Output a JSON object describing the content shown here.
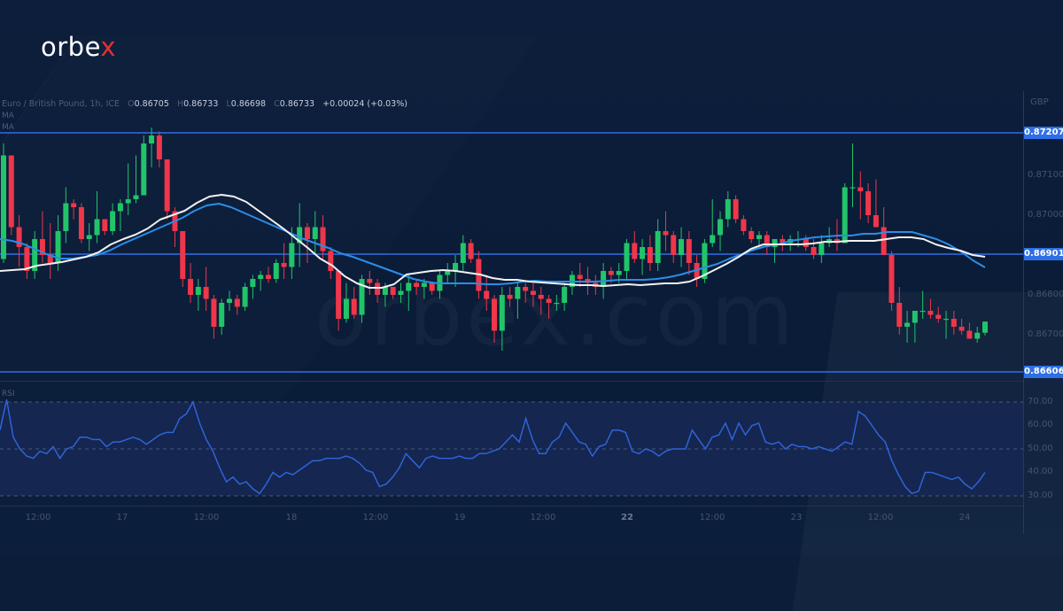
{
  "brand": {
    "logo_main": "orbe",
    "logo_accent": "x",
    "watermark": "orbex.com"
  },
  "legend": {
    "symbol": "Euro / British Pound, 1h, ICE",
    "open_label": "O",
    "open": "0.86705",
    "high_label": "H",
    "high": "0.86733",
    "low_label": "L",
    "low": "0.86698",
    "close_label": "C",
    "close": "0.86733",
    "change": "+0.00024 (+0.03%)",
    "ma1": "MA",
    "ma2": "MA"
  },
  "colors": {
    "up": "#22c46a",
    "down": "#f0364a",
    "ma_fast": "#f2f2f2",
    "ma_slow": "#2b8de8",
    "hline": "#2e6fe6",
    "rsi": "#2f63d8"
  },
  "price_axis": {
    "currency": "GBP",
    "ticks": [
      {
        "label": "0.87100",
        "y": 198
      },
      {
        "label": "0.87000",
        "y": 243
      },
      {
        "label": "0.86800",
        "y": 333
      },
      {
        "label": "0.86700",
        "y": 378
      }
    ],
    "levels": [
      {
        "label": "0.87207",
        "y": 150
      },
      {
        "label": "0.86901",
        "y": 287
      },
      {
        "label": "0.86606",
        "y": 420
      }
    ]
  },
  "rsi_axis": {
    "label": "RSI",
    "ticks": [
      {
        "label": "70.00",
        "y": 454
      },
      {
        "label": "60.00",
        "y": 480
      },
      {
        "label": "50.00",
        "y": 507
      },
      {
        "label": "40.00",
        "y": 533
      },
      {
        "label": "30.00",
        "y": 560
      }
    ]
  },
  "time_axis": [
    {
      "label": "12:00",
      "x": 43,
      "bold": false
    },
    {
      "label": "17",
      "x": 138,
      "bold": false
    },
    {
      "label": "12:00",
      "x": 233,
      "bold": false
    },
    {
      "label": "18",
      "x": 329,
      "bold": false
    },
    {
      "label": "12:00",
      "x": 424,
      "bold": false
    },
    {
      "label": "19",
      "x": 519,
      "bold": false
    },
    {
      "label": "12:00",
      "x": 613,
      "bold": false
    },
    {
      "label": "22",
      "x": 708,
      "bold": true
    },
    {
      "label": "12:00",
      "x": 804,
      "bold": false
    },
    {
      "label": "23",
      "x": 899,
      "bold": false
    },
    {
      "label": "12:00",
      "x": 994,
      "bold": false
    },
    {
      "label": "24",
      "x": 1089,
      "bold": false
    }
  ],
  "chart_data": {
    "type": "candlestick",
    "title": "Euro / British Pound, 1h, ICE",
    "ylabel": "GBP",
    "ylim": [
      0.8659,
      0.8725
    ],
    "horizontal_levels": [
      0.87207,
      0.86901,
      0.86606
    ],
    "x_ticks": [
      "12:00",
      "17",
      "12:00",
      "18",
      "12:00",
      "19",
      "12:00",
      "22",
      "12:00",
      "23",
      "12:00",
      "24"
    ],
    "ohlc_last": {
      "open": 0.86705,
      "high": 0.86733,
      "low": 0.86698,
      "close": 0.86733,
      "change": 0.00024,
      "change_pct": 0.03
    },
    "candles": [
      [
        0.8689,
        0.8718,
        0.8688,
        0.8715
      ],
      [
        0.8715,
        0.8715,
        0.8695,
        0.8697
      ],
      [
        0.8697,
        0.87,
        0.8687,
        0.8692
      ],
      [
        0.8692,
        0.8693,
        0.8684,
        0.8686
      ],
      [
        0.8686,
        0.8696,
        0.8684,
        0.8694
      ],
      [
        0.8694,
        0.8701,
        0.8688,
        0.869
      ],
      [
        0.869,
        0.8698,
        0.8684,
        0.8688
      ],
      [
        0.8688,
        0.87,
        0.8686,
        0.8696
      ],
      [
        0.8696,
        0.8707,
        0.8693,
        0.8703
      ],
      [
        0.8703,
        0.8704,
        0.8699,
        0.8702
      ],
      [
        0.8702,
        0.8703,
        0.8693,
        0.8694
      ],
      [
        0.8694,
        0.8698,
        0.8691,
        0.8695
      ],
      [
        0.8695,
        0.8706,
        0.8693,
        0.8699
      ],
      [
        0.8699,
        0.8699,
        0.8695,
        0.8696
      ],
      [
        0.8696,
        0.8703,
        0.8695,
        0.8701
      ],
      [
        0.8701,
        0.8704,
        0.8696,
        0.8703
      ],
      [
        0.8703,
        0.8713,
        0.87,
        0.8704
      ],
      [
        0.8704,
        0.8715,
        0.8703,
        0.8705
      ],
      [
        0.8705,
        0.872,
        0.8705,
        0.8718
      ],
      [
        0.8718,
        0.8722,
        0.8712,
        0.872
      ],
      [
        0.872,
        0.8721,
        0.8712,
        0.8714
      ],
      [
        0.8714,
        0.8714,
        0.8699,
        0.8701
      ],
      [
        0.8701,
        0.8702,
        0.8692,
        0.8696
      ],
      [
        0.8696,
        0.8696,
        0.8682,
        0.8684
      ],
      [
        0.8684,
        0.8688,
        0.8678,
        0.868
      ],
      [
        0.868,
        0.8684,
        0.8676,
        0.8682
      ],
      [
        0.8682,
        0.8687,
        0.8676,
        0.8679
      ],
      [
        0.8679,
        0.868,
        0.8669,
        0.8672
      ],
      [
        0.8672,
        0.8679,
        0.867,
        0.8678
      ],
      [
        0.8678,
        0.8681,
        0.8676,
        0.8679
      ],
      [
        0.8679,
        0.868,
        0.8675,
        0.8677
      ],
      [
        0.8677,
        0.8683,
        0.8676,
        0.8682
      ],
      [
        0.8682,
        0.8685,
        0.8679,
        0.8684
      ],
      [
        0.8684,
        0.8686,
        0.8681,
        0.8685
      ],
      [
        0.8685,
        0.8687,
        0.8683,
        0.8684
      ],
      [
        0.8684,
        0.8689,
        0.8683,
        0.8688
      ],
      [
        0.8688,
        0.8693,
        0.8684,
        0.8687
      ],
      [
        0.8687,
        0.8697,
        0.8684,
        0.8693
      ],
      [
        0.8693,
        0.8703,
        0.8687,
        0.8697
      ],
      [
        0.8697,
        0.8698,
        0.8688,
        0.8694
      ],
      [
        0.8694,
        0.8701,
        0.869,
        0.8697
      ],
      [
        0.8697,
        0.87,
        0.8689,
        0.8691
      ],
      [
        0.8691,
        0.8692,
        0.8684,
        0.8686
      ],
      [
        0.8686,
        0.8686,
        0.8671,
        0.8674
      ],
      [
        0.8674,
        0.8683,
        0.8673,
        0.8679
      ],
      [
        0.8679,
        0.8682,
        0.8674,
        0.8675
      ],
      [
        0.8675,
        0.8685,
        0.8673,
        0.8684
      ],
      [
        0.8684,
        0.8686,
        0.868,
        0.8683
      ],
      [
        0.8683,
        0.8684,
        0.8678,
        0.868
      ],
      [
        0.868,
        0.8683,
        0.8677,
        0.8682
      ],
      [
        0.8682,
        0.8682,
        0.8679,
        0.868
      ],
      [
        0.868,
        0.8683,
        0.8678,
        0.8681
      ],
      [
        0.8681,
        0.8685,
        0.8676,
        0.8683
      ],
      [
        0.8683,
        0.8684,
        0.868,
        0.8682
      ],
      [
        0.8682,
        0.8684,
        0.8679,
        0.8683
      ],
      [
        0.8683,
        0.8683,
        0.868,
        0.8681
      ],
      [
        0.8681,
        0.8686,
        0.8679,
        0.8685
      ],
      [
        0.8685,
        0.8688,
        0.8683,
        0.8686
      ],
      [
        0.8686,
        0.869,
        0.8682,
        0.8688
      ],
      [
        0.8688,
        0.8695,
        0.8686,
        0.8693
      ],
      [
        0.8693,
        0.8694,
        0.8688,
        0.8689
      ],
      [
        0.8689,
        0.8691,
        0.8679,
        0.8681
      ],
      [
        0.8681,
        0.8685,
        0.8676,
        0.8679
      ],
      [
        0.8679,
        0.868,
        0.8668,
        0.8671
      ],
      [
        0.8671,
        0.8682,
        0.8666,
        0.868
      ],
      [
        0.868,
        0.8682,
        0.8677,
        0.8679
      ],
      [
        0.8679,
        0.8683,
        0.8674,
        0.8682
      ],
      [
        0.8682,
        0.8683,
        0.8678,
        0.8681
      ],
      [
        0.8681,
        0.8683,
        0.8677,
        0.868
      ],
      [
        0.868,
        0.8682,
        0.8675,
        0.8679
      ],
      [
        0.8679,
        0.868,
        0.8674,
        0.8678
      ],
      [
        0.8678,
        0.868,
        0.8676,
        0.8678
      ],
      [
        0.8678,
        0.8683,
        0.8676,
        0.8682
      ],
      [
        0.8682,
        0.8686,
        0.868,
        0.8685
      ],
      [
        0.8685,
        0.8688,
        0.8682,
        0.8684
      ],
      [
        0.8684,
        0.8687,
        0.868,
        0.8683
      ],
      [
        0.8683,
        0.8685,
        0.868,
        0.8682
      ],
      [
        0.8682,
        0.8688,
        0.8679,
        0.8686
      ],
      [
        0.8686,
        0.8687,
        0.8683,
        0.8685
      ],
      [
        0.8685,
        0.8688,
        0.8683,
        0.8686
      ],
      [
        0.8686,
        0.8694,
        0.8684,
        0.8693
      ],
      [
        0.8693,
        0.8696,
        0.8688,
        0.8689
      ],
      [
        0.8689,
        0.8694,
        0.8685,
        0.8692
      ],
      [
        0.8692,
        0.8695,
        0.8686,
        0.8688
      ],
      [
        0.8688,
        0.8699,
        0.8686,
        0.8696
      ],
      [
        0.8696,
        0.8701,
        0.8691,
        0.8695
      ],
      [
        0.8695,
        0.8696,
        0.8688,
        0.869
      ],
      [
        0.869,
        0.8697,
        0.8687,
        0.8694
      ],
      [
        0.8694,
        0.8696,
        0.8685,
        0.8688
      ],
      [
        0.8688,
        0.869,
        0.8682,
        0.8684
      ],
      [
        0.8684,
        0.8694,
        0.8683,
        0.8693
      ],
      [
        0.8693,
        0.8704,
        0.8692,
        0.8695
      ],
      [
        0.8695,
        0.8701,
        0.8691,
        0.8699
      ],
      [
        0.8699,
        0.8706,
        0.8697,
        0.8704
      ],
      [
        0.8704,
        0.8705,
        0.8698,
        0.8699
      ],
      [
        0.8699,
        0.87,
        0.8695,
        0.8696
      ],
      [
        0.8696,
        0.8697,
        0.8693,
        0.8694
      ],
      [
        0.8694,
        0.8696,
        0.8692,
        0.8695
      ],
      [
        0.8695,
        0.8696,
        0.869,
        0.8692
      ],
      [
        0.8692,
        0.8694,
        0.8688,
        0.8694
      ],
      [
        0.8694,
        0.8695,
        0.8691,
        0.8693
      ],
      [
        0.8693,
        0.8695,
        0.8691,
        0.8694
      ],
      [
        0.8694,
        0.8696,
        0.8692,
        0.8694
      ],
      [
        0.8694,
        0.8695,
        0.8691,
        0.8692
      ],
      [
        0.8692,
        0.8694,
        0.8689,
        0.869
      ],
      [
        0.869,
        0.8695,
        0.8688,
        0.8693
      ],
      [
        0.8693,
        0.8697,
        0.8692,
        0.8694
      ],
      [
        0.8694,
        0.8699,
        0.8691,
        0.8693
      ],
      [
        0.8693,
        0.8708,
        0.8693,
        0.8707
      ],
      [
        0.8707,
        0.8718,
        0.8702,
        0.8707
      ],
      [
        0.8707,
        0.8711,
        0.8699,
        0.8706
      ],
      [
        0.8706,
        0.8708,
        0.8698,
        0.87
      ],
      [
        0.87,
        0.8709,
        0.8698,
        0.8697
      ],
      [
        0.8697,
        0.8702,
        0.8693,
        0.869
      ],
      [
        0.869,
        0.8691,
        0.8676,
        0.8678
      ],
      [
        0.8678,
        0.8682,
        0.867,
        0.8672
      ],
      [
        0.8672,
        0.8676,
        0.8668,
        0.8673
      ],
      [
        0.8673,
        0.8676,
        0.8668,
        0.8676
      ],
      [
        0.8676,
        0.8681,
        0.8674,
        0.8676
      ],
      [
        0.8676,
        0.8679,
        0.8674,
        0.8675
      ],
      [
        0.8675,
        0.8677,
        0.8673,
        0.8674
      ],
      [
        0.8674,
        0.8676,
        0.8669,
        0.8674
      ],
      [
        0.8674,
        0.8676,
        0.867,
        0.8672
      ],
      [
        0.8672,
        0.8674,
        0.867,
        0.8671
      ],
      [
        0.8671,
        0.8673,
        0.8669,
        0.8669
      ],
      [
        0.8669,
        0.8672,
        0.8668,
        0.86705
      ],
      [
        0.86705,
        0.86733,
        0.86698,
        0.86733
      ]
    ],
    "ma_fast_y": [
      306,
      305,
      304,
      300,
      298,
      296,
      293,
      290,
      285,
      276,
      270,
      265,
      258,
      248,
      243,
      238,
      229,
      222,
      220,
      222,
      228,
      238,
      248,
      258,
      269,
      280,
      292,
      300,
      312,
      320,
      325,
      325,
      321,
      310,
      308,
      306,
      305,
      306,
      308,
      310,
      314,
      316,
      316,
      318,
      319,
      320,
      321,
      322,
      322,
      323,
      322,
      321,
      322,
      321,
      320,
      320,
      318,
      312,
      305,
      298,
      290,
      281,
      276,
      276,
      276,
      276,
      275,
      273,
      273,
      272,
      272,
      272,
      270,
      268,
      268,
      270,
      276,
      280,
      283,
      288,
      290
    ],
    "ma_slow_y": [
      270,
      272,
      276,
      282,
      288,
      292,
      292,
      290,
      288,
      283,
      276,
      270,
      264,
      258,
      252,
      246,
      238,
      232,
      230,
      234,
      240,
      246,
      252,
      258,
      264,
      270,
      275,
      280,
      286,
      290,
      295,
      300,
      305,
      310,
      315,
      318,
      320,
      320,
      320,
      320,
      321,
      321,
      320,
      318,
      317,
      318,
      318,
      318,
      318,
      318,
      317,
      316,
      316,
      316,
      315,
      313,
      310,
      306,
      302,
      298,
      292,
      287,
      282,
      278,
      276,
      272,
      270,
      268,
      267,
      266,
      266,
      264,
      264,
      262,
      262,
      262,
      266,
      270,
      276,
      284,
      294,
      302
    ],
    "rsi": [
      58,
      71,
      55,
      50,
      47,
      46,
      49,
      48,
      51,
      46,
      50,
      51,
      55,
      55,
      54,
      54,
      51,
      53,
      53,
      54,
      55,
      54,
      52,
      54,
      56,
      57,
      57,
      63,
      65,
      70,
      61,
      54,
      49,
      42,
      36,
      38,
      35,
      36,
      33,
      31,
      35,
      40,
      38,
      40,
      39,
      41,
      43,
      45,
      45,
      46,
      46,
      46,
      47,
      46,
      44,
      41,
      40,
      34,
      35,
      38,
      42,
      48,
      45,
      42,
      46,
      47,
      46,
      46,
      46,
      47,
      46,
      46,
      48,
      48,
      49,
      50,
      53,
      56,
      53,
      63,
      54,
      48,
      48,
      53,
      55,
      61,
      57,
      53,
      52,
      47,
      51,
      52,
      58,
      58,
      57,
      49,
      48,
      50,
      49,
      47,
      49,
      50,
      50,
      50,
      58,
      54,
      50,
      55,
      56,
      61,
      54,
      61,
      56,
      60,
      61,
      53,
      52,
      53,
      50,
      52,
      51,
      51,
      50,
      51,
      50,
      49,
      51,
      53,
      52,
      66,
      64,
      60,
      56,
      53,
      45,
      39,
      34,
      31,
      32,
      40,
      40,
      39,
      38,
      37,
      38,
      35,
      33,
      36,
      40
    ],
    "rsi_levels": [
      70,
      50,
      30
    ],
    "rsi_ylim": [
      27,
      73
    ]
  }
}
